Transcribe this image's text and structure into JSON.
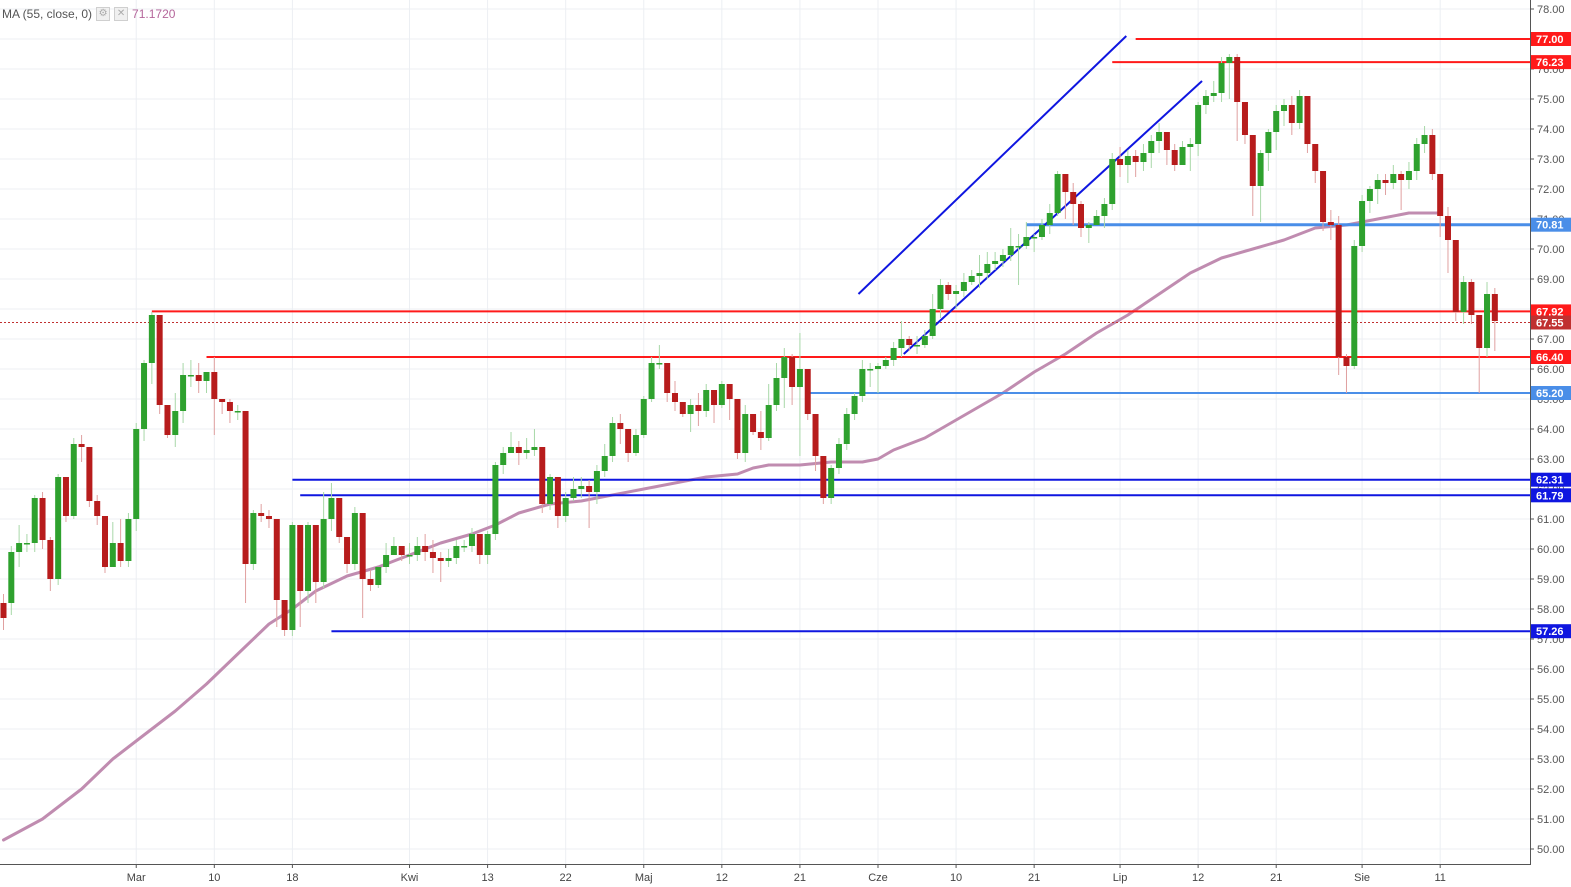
{
  "indicator": {
    "label": "MA (55, close, 0)",
    "value": "71.1720",
    "settings_icon": "gear-icon",
    "close_icon": "close-icon"
  },
  "colors": {
    "up": "#2ea12e",
    "down": "#b71c1c",
    "ma": "#c08cb0",
    "level_red": "#ff1a1a",
    "level_blue": "#0f16e0",
    "level_lightblue": "#4a8ee8",
    "price_line": "#c03030"
  },
  "chart_data": {
    "type": "candlestick",
    "title": "",
    "ylim": [
      49.5,
      78.3
    ],
    "yticks": [
      "50.00",
      "51.00",
      "52.00",
      "53.00",
      "54.00",
      "55.00",
      "56.00",
      "57.00",
      "58.00",
      "59.00",
      "60.00",
      "61.00",
      "62.00",
      "63.00",
      "64.00",
      "65.00",
      "66.00",
      "67.00",
      "68.00",
      "69.00",
      "70.00",
      "71.00",
      "72.00",
      "73.00",
      "74.00",
      "75.00",
      "76.00",
      "77.00",
      "78.00"
    ],
    "xticks": [
      {
        "label": "Mar",
        "bar": 17
      },
      {
        "label": "10",
        "bar": 27
      },
      {
        "label": "18",
        "bar": 37
      },
      {
        "label": "Kwi",
        "bar": 52
      },
      {
        "label": "13",
        "bar": 62
      },
      {
        "label": "22",
        "bar": 72
      },
      {
        "label": "Maj",
        "bar": 82
      },
      {
        "label": "12",
        "bar": 92
      },
      {
        "label": "21",
        "bar": 102
      },
      {
        "label": "Cze",
        "bar": 112
      },
      {
        "label": "10",
        "bar": 122
      },
      {
        "label": "21",
        "bar": 132
      },
      {
        "label": "Lip",
        "bar": 143
      },
      {
        "label": "12",
        "bar": 153
      },
      {
        "label": "21",
        "bar": 163
      },
      {
        "label": "Sie",
        "bar": 174
      },
      {
        "label": "11",
        "bar": 184
      }
    ],
    "last_price": {
      "value": 67.55,
      "label": "67.55"
    },
    "ma_label": "MA (55, close, 0)",
    "ma_points": [
      [
        0,
        50.3
      ],
      [
        5,
        51.0
      ],
      [
        10,
        52.0
      ],
      [
        14,
        53.0
      ],
      [
        18,
        53.8
      ],
      [
        22,
        54.6
      ],
      [
        26,
        55.5
      ],
      [
        30,
        56.5
      ],
      [
        34,
        57.5
      ],
      [
        37,
        58.0
      ],
      [
        40,
        58.6
      ],
      [
        44,
        59.1
      ],
      [
        48,
        59.4
      ],
      [
        52,
        59.8
      ],
      [
        56,
        60.2
      ],
      [
        60,
        60.5
      ],
      [
        63,
        60.8
      ],
      [
        66,
        61.2
      ],
      [
        70,
        61.5
      ],
      [
        74,
        61.6
      ],
      [
        78,
        61.8
      ],
      [
        82,
        62.0
      ],
      [
        86,
        62.2
      ],
      [
        90,
        62.4
      ],
      [
        94,
        62.5
      ],
      [
        96,
        62.7
      ],
      [
        98,
        62.8
      ],
      [
        102,
        62.8
      ],
      [
        106,
        62.9
      ],
      [
        110,
        62.9
      ],
      [
        112,
        63.0
      ],
      [
        114,
        63.3
      ],
      [
        118,
        63.7
      ],
      [
        120,
        64.0
      ],
      [
        124,
        64.6
      ],
      [
        128,
        65.2
      ],
      [
        132,
        65.9
      ],
      [
        136,
        66.5
      ],
      [
        140,
        67.2
      ],
      [
        144,
        67.8
      ],
      [
        148,
        68.5
      ],
      [
        152,
        69.2
      ],
      [
        156,
        69.7
      ],
      [
        160,
        70.0
      ],
      [
        164,
        70.3
      ],
      [
        168,
        70.7
      ],
      [
        172,
        70.8
      ],
      [
        176,
        71.0
      ],
      [
        180,
        71.2
      ],
      [
        184,
        71.2
      ]
    ],
    "candles": [
      [
        58.2,
        57.7,
        58.5,
        57.3
      ],
      [
        58.2,
        59.9,
        60.1,
        57.8
      ],
      [
        59.9,
        60.2,
        60.8,
        59.4
      ],
      [
        60.2,
        60.2,
        60.5,
        59.9
      ],
      [
        60.2,
        61.7,
        61.8,
        59.9
      ],
      [
        61.7,
        60.3,
        61.9,
        60.0
      ],
      [
        60.3,
        59.0,
        60.4,
        58.6
      ],
      [
        59.0,
        62.4,
        62.5,
        58.8
      ],
      [
        62.4,
        61.1,
        61.5,
        60.9
      ],
      [
        61.1,
        63.5,
        63.7,
        61.0
      ],
      [
        63.5,
        63.4,
        63.8,
        62.9
      ],
      [
        63.4,
        61.6,
        62.1,
        61.4
      ],
      [
        61.6,
        61.1,
        61.8,
        60.8
      ],
      [
        61.1,
        59.4,
        59.8,
        59.2
      ],
      [
        59.4,
        60.2,
        60.9,
        59.4
      ],
      [
        60.2,
        59.6,
        61.0,
        59.4
      ],
      [
        59.6,
        61.0,
        61.2,
        59.4
      ],
      [
        61.0,
        64.0,
        64.2,
        60.6
      ],
      [
        64.0,
        66.2,
        66.3,
        63.6
      ],
      [
        66.2,
        67.8,
        67.9,
        65.5
      ],
      [
        67.8,
        64.8,
        64.9,
        64.5
      ],
      [
        64.8,
        63.8,
        64.3,
        63.7
      ],
      [
        63.8,
        64.6,
        65.2,
        63.4
      ],
      [
        64.6,
        65.8,
        66.2,
        64.2
      ],
      [
        65.8,
        65.8,
        66.3,
        65.4
      ],
      [
        65.8,
        65.6,
        66.2,
        65.2
      ],
      [
        65.6,
        65.9,
        65.9,
        65.2
      ],
      [
        65.9,
        65.0,
        66.4,
        63.8
      ],
      [
        65.0,
        64.9,
        64.9,
        64.5
      ],
      [
        64.9,
        64.6,
        65.0,
        64.2
      ],
      [
        64.6,
        64.6,
        64.8,
        64.3
      ],
      [
        64.6,
        59.5,
        60.0,
        58.2
      ],
      [
        59.5,
        61.2,
        61.3,
        59.3
      ],
      [
        61.2,
        61.1,
        61.5,
        60.9
      ],
      [
        61.1,
        61.0,
        61.3,
        60.7
      ],
      [
        61.0,
        58.3,
        58.4,
        57.4
      ],
      [
        58.3,
        57.3,
        57.5,
        57.1
      ],
      [
        57.3,
        60.8,
        60.9,
        57.1
      ],
      [
        60.8,
        58.6,
        59.5,
        57.4
      ],
      [
        58.6,
        60.8,
        60.9,
        58.2
      ],
      [
        60.8,
        58.9,
        59.5,
        58.2
      ],
      [
        58.9,
        61.0,
        61.9,
        58.7
      ],
      [
        61.0,
        61.7,
        62.2,
        60.6
      ],
      [
        61.7,
        60.4,
        60.8,
        60.2
      ],
      [
        60.4,
        59.5,
        59.9,
        59.2
      ],
      [
        59.5,
        61.2,
        61.4,
        59.3
      ],
      [
        61.2,
        59.0,
        59.8,
        57.7
      ],
      [
        59.0,
        58.8,
        59.3,
        58.6
      ],
      [
        58.8,
        59.4,
        59.4,
        58.7
      ],
      [
        59.4,
        59.8,
        60.2,
        59.2
      ],
      [
        59.8,
        60.1,
        60.4,
        59.8
      ],
      [
        60.1,
        59.8,
        60.0,
        59.6
      ],
      [
        59.8,
        59.8,
        60.2,
        59.5
      ],
      [
        59.8,
        60.1,
        60.4,
        59.6
      ],
      [
        60.1,
        59.9,
        60.5,
        59.6
      ],
      [
        59.9,
        59.7,
        60.3,
        59.2
      ],
      [
        59.7,
        59.6,
        59.9,
        58.9
      ],
      [
        59.6,
        59.7,
        60.0,
        59.4
      ],
      [
        59.7,
        60.1,
        60.3,
        59.5
      ],
      [
        60.1,
        60.1,
        60.3,
        59.9
      ],
      [
        60.1,
        60.5,
        60.7,
        59.9
      ],
      [
        60.5,
        59.8,
        60.0,
        59.5
      ],
      [
        59.8,
        60.5,
        60.6,
        59.5
      ],
      [
        60.5,
        62.8,
        62.9,
        60.3
      ],
      [
        62.8,
        63.2,
        63.4,
        62.5
      ],
      [
        63.2,
        63.4,
        63.9,
        63.2
      ],
      [
        63.4,
        63.2,
        63.6,
        62.8
      ],
      [
        63.2,
        63.3,
        63.7,
        63.0
      ],
      [
        63.3,
        63.4,
        64.0,
        63.1
      ],
      [
        63.4,
        61.5,
        61.9,
        61.2
      ],
      [
        61.5,
        62.4,
        62.5,
        61.3
      ],
      [
        62.4,
        61.1,
        61.5,
        60.7
      ],
      [
        61.1,
        61.7,
        61.9,
        60.9
      ],
      [
        61.7,
        62.0,
        62.4,
        61.6
      ],
      [
        62.0,
        62.1,
        62.4,
        61.7
      ],
      [
        62.1,
        61.9,
        62.3,
        60.7
      ],
      [
        61.9,
        62.6,
        62.8,
        61.5
      ],
      [
        62.6,
        63.1,
        63.5,
        62.4
      ],
      [
        63.1,
        64.2,
        64.4,
        62.9
      ],
      [
        64.2,
        64.0,
        64.5,
        63.5
      ],
      [
        64.0,
        63.2,
        63.4,
        62.9
      ],
      [
        63.2,
        63.8,
        64.0,
        63.1
      ],
      [
        63.8,
        65.0,
        65.1,
        63.7
      ],
      [
        65.0,
        66.2,
        66.4,
        64.9
      ],
      [
        66.2,
        66.2,
        66.8,
        66.0
      ],
      [
        66.2,
        65.2,
        65.7,
        64.9
      ],
      [
        65.2,
        64.9,
        65.6,
        64.6
      ],
      [
        64.9,
        64.5,
        64.9,
        64.4
      ],
      [
        64.5,
        64.8,
        65.0,
        63.9
      ],
      [
        64.8,
        64.6,
        65.2,
        64.1
      ],
      [
        64.6,
        65.3,
        65.5,
        64.4
      ],
      [
        65.3,
        64.8,
        65.1,
        64.2
      ],
      [
        64.8,
        65.5,
        65.6,
        64.7
      ],
      [
        65.5,
        65.0,
        65.2,
        64.3
      ],
      [
        65.0,
        63.2,
        63.7,
        63.0
      ],
      [
        63.2,
        64.5,
        64.8,
        62.9
      ],
      [
        64.5,
        63.9,
        64.2,
        63.8
      ],
      [
        63.9,
        63.7,
        64.6,
        63.3
      ],
      [
        63.7,
        64.8,
        65.5,
        63.6
      ],
      [
        64.8,
        65.7,
        66.2,
        64.6
      ],
      [
        65.7,
        66.4,
        66.7,
        64.7
      ],
      [
        66.4,
        65.4,
        66.5,
        64.8
      ],
      [
        65.4,
        66.0,
        67.2,
        63.1
      ],
      [
        66.0,
        64.5,
        64.7,
        64.3
      ],
      [
        64.5,
        63.1,
        63.4,
        62.6
      ],
      [
        63.1,
        61.7,
        62.0,
        61.5
      ],
      [
        61.7,
        62.7,
        62.8,
        61.5
      ],
      [
        62.7,
        63.5,
        63.7,
        62.5
      ],
      [
        63.5,
        64.5,
        64.7,
        63.3
      ],
      [
        64.5,
        65.1,
        65.2,
        64.3
      ],
      [
        65.1,
        66.0,
        66.3,
        64.9
      ],
      [
        66.0,
        66.0,
        66.2,
        65.4
      ],
      [
        66.0,
        66.1,
        66.2,
        65.2
      ],
      [
        66.1,
        66.3,
        66.4,
        66.0
      ],
      [
        66.3,
        66.7,
        66.9,
        66.1
      ],
      [
        66.7,
        67.0,
        67.6,
        66.4
      ],
      [
        67.0,
        66.8,
        67.1,
        66.6
      ],
      [
        66.8,
        66.8,
        67.1,
        66.5
      ],
      [
        66.8,
        67.1,
        67.3,
        66.7
      ],
      [
        67.1,
        68.0,
        68.5,
        67.0
      ],
      [
        68.0,
        68.8,
        69.0,
        67.7
      ],
      [
        68.8,
        68.5,
        68.9,
        68.3
      ],
      [
        68.5,
        68.6,
        68.8,
        68.0
      ],
      [
        68.6,
        68.9,
        69.2,
        68.4
      ],
      [
        68.9,
        69.1,
        69.3,
        68.8
      ],
      [
        69.1,
        69.2,
        69.8,
        68.7
      ],
      [
        69.2,
        69.5,
        69.9,
        69.0
      ],
      [
        69.5,
        69.6,
        69.9,
        69.3
      ],
      [
        69.6,
        69.8,
        70.0,
        69.4
      ],
      [
        69.8,
        70.1,
        70.7,
        69.6
      ],
      [
        70.1,
        70.1,
        70.5,
        68.8
      ],
      [
        70.1,
        70.4,
        70.9,
        70.0
      ],
      [
        70.4,
        70.4,
        70.5,
        69.9
      ],
      [
        70.4,
        70.8,
        71.0,
        70.3
      ],
      [
        70.8,
        71.2,
        71.5,
        70.5
      ],
      [
        71.2,
        72.5,
        72.6,
        71.1
      ],
      [
        72.5,
        71.9,
        72.1,
        71.0
      ],
      [
        71.9,
        71.5,
        72.2,
        70.8
      ],
      [
        71.5,
        70.7,
        71.6,
        70.4
      ],
      [
        70.7,
        70.8,
        70.9,
        70.2
      ],
      [
        70.8,
        71.1,
        71.3,
        70.9
      ],
      [
        71.1,
        71.5,
        71.7,
        70.7
      ],
      [
        71.5,
        73.0,
        73.2,
        71.3
      ],
      [
        73.0,
        72.8,
        73.4,
        72.4
      ],
      [
        72.8,
        73.1,
        73.3,
        72.2
      ],
      [
        73.1,
        72.9,
        73.3,
        72.4
      ],
      [
        72.9,
        73.2,
        73.5,
        72.6
      ],
      [
        73.2,
        73.6,
        73.8,
        72.7
      ],
      [
        73.6,
        73.9,
        74.2,
        73.2
      ],
      [
        73.9,
        73.3,
        73.8,
        72.8
      ],
      [
        73.3,
        72.8,
        73.5,
        72.6
      ],
      [
        72.8,
        73.4,
        73.6,
        72.8
      ],
      [
        73.4,
        73.5,
        73.7,
        72.6
      ],
      [
        73.5,
        74.8,
        74.9,
        73.1
      ],
      [
        74.8,
        75.1,
        75.3,
        74.5
      ],
      [
        75.1,
        75.2,
        75.6,
        74.9
      ],
      [
        75.2,
        76.2,
        76.4,
        74.9
      ],
      [
        76.2,
        76.4,
        76.5,
        75.0
      ],
      [
        76.4,
        74.9,
        76.5,
        73.6
      ],
      [
        74.9,
        73.8,
        74.2,
        73.5
      ],
      [
        73.8,
        72.1,
        72.5,
        71.1
      ],
      [
        72.1,
        73.2,
        73.3,
        70.9
      ],
      [
        73.2,
        73.9,
        74.0,
        72.6
      ],
      [
        73.9,
        74.6,
        74.8,
        73.3
      ],
      [
        74.6,
        74.8,
        75.0,
        74.1
      ],
      [
        74.8,
        74.2,
        75.1,
        73.8
      ],
      [
        74.2,
        75.1,
        75.3,
        74.0
      ],
      [
        75.1,
        73.5,
        75.1,
        73.2
      ],
      [
        73.5,
        72.6,
        73.0,
        72.2
      ],
      [
        72.6,
        70.9,
        71.2,
        70.6
      ],
      [
        70.9,
        70.8,
        71.3,
        70.3
      ],
      [
        70.8,
        66.4,
        71.1,
        65.8
      ],
      [
        66.4,
        66.1,
        66.5,
        65.2
      ],
      [
        66.1,
        70.1,
        70.3,
        66.0
      ],
      [
        70.1,
        71.6,
        71.8,
        69.9
      ],
      [
        71.6,
        72.0,
        72.1,
        71.2
      ],
      [
        72.0,
        72.3,
        72.5,
        71.5
      ],
      [
        72.3,
        72.2,
        72.5,
        71.8
      ],
      [
        72.2,
        72.5,
        72.8,
        72.0
      ],
      [
        72.5,
        72.3,
        72.6,
        71.3
      ],
      [
        72.3,
        72.6,
        72.9,
        72.0
      ],
      [
        72.6,
        73.5,
        73.7,
        72.3
      ],
      [
        73.5,
        73.8,
        74.1,
        73.2
      ],
      [
        73.8,
        72.5,
        74.0,
        72.3
      ],
      [
        72.5,
        71.1,
        71.9,
        70.4
      ],
      [
        71.1,
        70.3,
        71.4,
        69.2
      ],
      [
        70.3,
        67.9,
        68.4,
        67.6
      ],
      [
        67.9,
        68.9,
        69.1,
        67.5
      ],
      [
        68.9,
        67.8,
        69.0,
        67.5
      ],
      [
        67.8,
        66.7,
        67.5,
        65.2
      ],
      [
        66.7,
        68.5,
        68.9,
        66.4
      ],
      [
        68.5,
        67.6,
        68.7,
        66.6
      ]
    ],
    "levels": [
      {
        "value": 77.0,
        "label": "77.00",
        "color": "red",
        "start_bar": 145
      },
      {
        "value": 76.23,
        "label": "76.23",
        "color": "red",
        "start_bar": 142
      },
      {
        "value": 67.92,
        "label": "67.92",
        "color": "red",
        "start_bar": 19
      },
      {
        "value": 66.4,
        "label": "66.40",
        "color": "red",
        "start_bar": 26
      },
      {
        "value": 70.81,
        "label": "70.81",
        "color": "lightblue",
        "start_bar": 131
      },
      {
        "value": 65.2,
        "label": "65.20",
        "color": "lightblue",
        "start_bar": 103
      },
      {
        "value": 62.31,
        "label": "62.31",
        "color": "blue",
        "start_bar": 37
      },
      {
        "value": 61.79,
        "label": "61.79",
        "color": "blue",
        "start_bar": 38
      },
      {
        "value": 57.26,
        "label": "57.26",
        "color": "blue",
        "start_bar": 42
      }
    ],
    "trendlines": [
      {
        "x1": 109.5,
        "y1": 68.5,
        "x2": 143.8,
        "y2": 77.1
      },
      {
        "x1": 115.3,
        "y1": 66.5,
        "x2": 153.5,
        "y2": 75.6
      }
    ]
  }
}
